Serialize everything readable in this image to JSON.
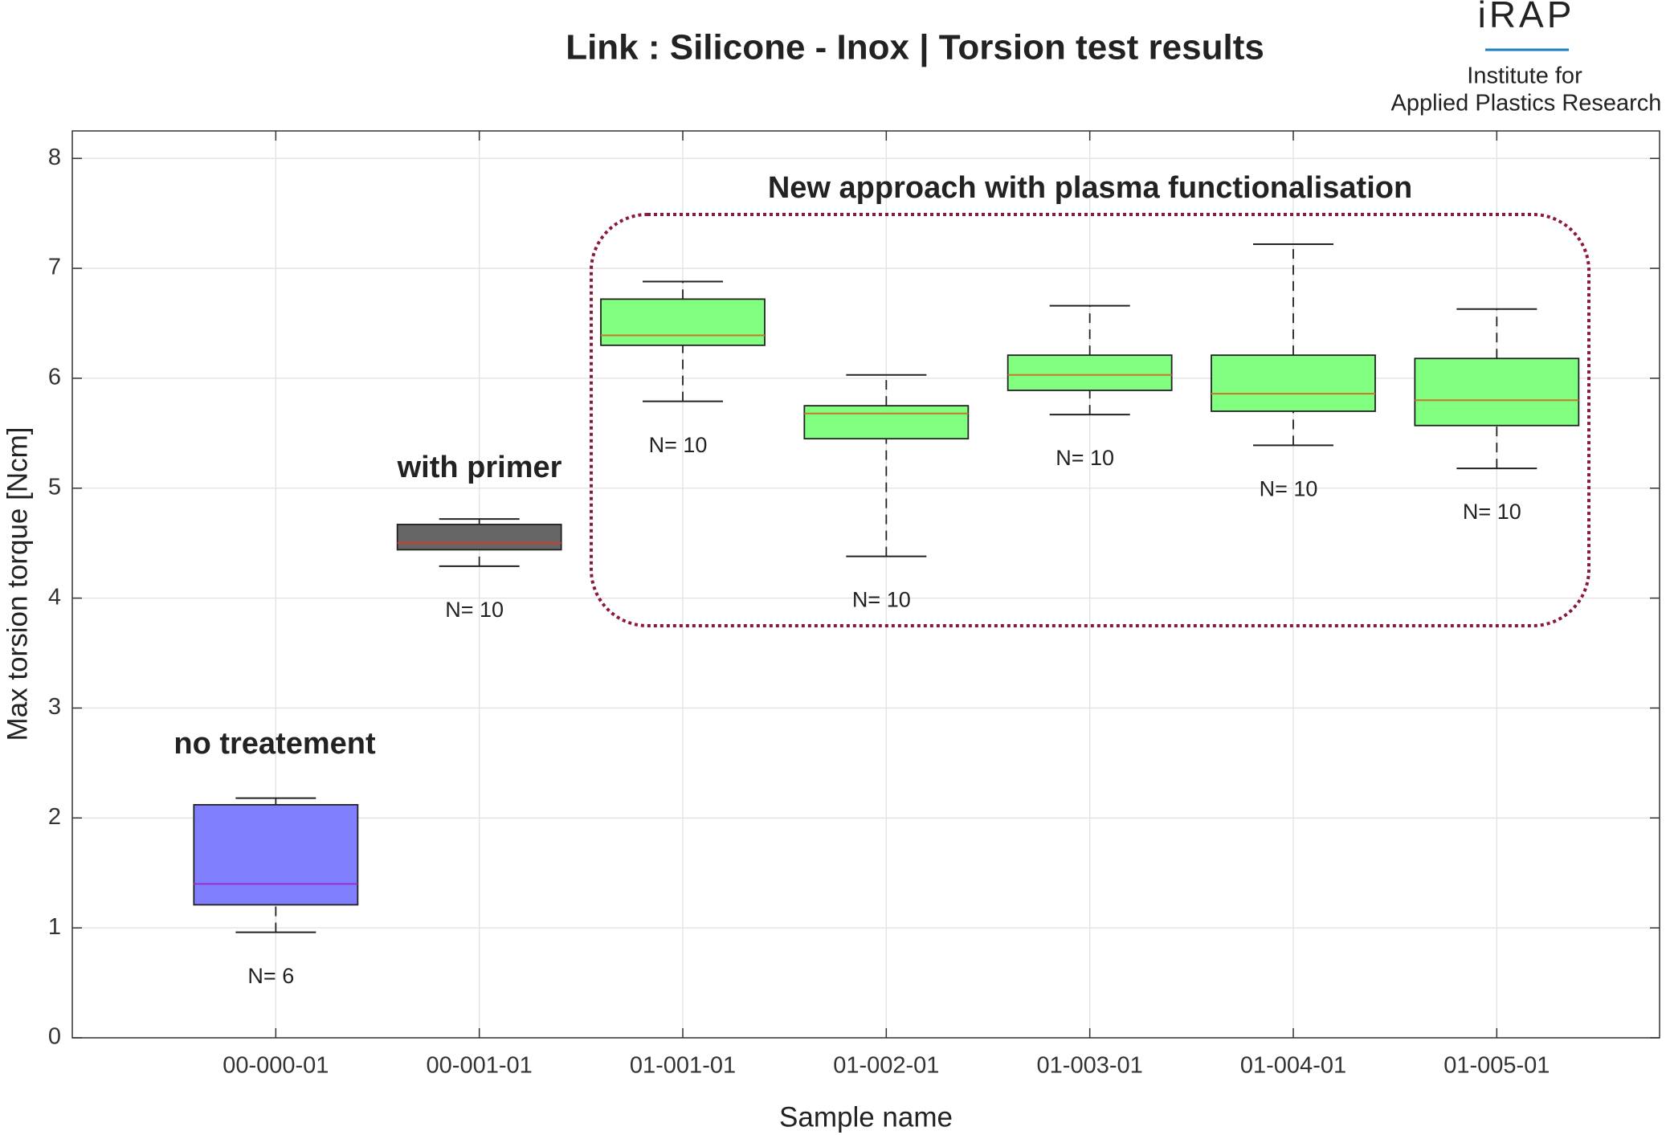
{
  "chart_data": {
    "type": "box",
    "title": "Link : Silicone - Inox | Torsion test results",
    "x_label": "Sample name",
    "y_label": "Max torsion torque [Ncm]",
    "categories": [
      "00-000-01",
      "00-001-01",
      "01-001-01",
      "01-002-01",
      "01-003-01",
      "01-004-01",
      "01-005-01"
    ],
    "boxes": [
      {
        "whisker_low": 0.96,
        "q1": 1.21,
        "median": 1.4,
        "q3": 2.12,
        "whisker_high": 2.18,
        "color": "#8080ff",
        "median_color": "#9b30c8",
        "label": "N= 6"
      },
      {
        "whisker_low": 4.29,
        "q1": 4.44,
        "median": 4.5,
        "q3": 4.67,
        "whisker_high": 4.72,
        "color": "#666666",
        "median_color": "#d23c28",
        "label": "N= 10"
      },
      {
        "whisker_low": 5.79,
        "q1": 6.3,
        "median": 6.39,
        "q3": 6.72,
        "whisker_high": 6.88,
        "color": "#80ff80",
        "median_color": "#c87828",
        "label": "N= 10"
      },
      {
        "whisker_low": 4.38,
        "q1": 5.45,
        "median": 5.68,
        "q3": 5.75,
        "whisker_high": 6.03,
        "color": "#80ff80",
        "median_color": "#c87828",
        "label": "N= 10"
      },
      {
        "whisker_low": 5.67,
        "q1": 5.89,
        "median": 6.03,
        "q3": 6.21,
        "whisker_high": 6.66,
        "color": "#80ff80",
        "median_color": "#c87828",
        "label": "N= 10"
      },
      {
        "whisker_low": 5.39,
        "q1": 5.7,
        "median": 5.86,
        "q3": 6.21,
        "whisker_high": 7.22,
        "color": "#80ff80",
        "median_color": "#c87828",
        "label": "N= 10"
      },
      {
        "whisker_low": 5.18,
        "q1": 5.57,
        "median": 5.8,
        "q3": 6.18,
        "whisker_high": 6.63,
        "color": "#80ff80",
        "median_color": "#c87828",
        "label": "N= 10"
      }
    ],
    "ylim": [
      0,
      8.25
    ],
    "yticks": [
      0,
      1,
      2,
      3,
      4,
      5,
      6,
      7,
      8
    ],
    "grid": true,
    "annotations": [
      "no treatement",
      "with primer",
      "New approach with plasma functionalisation"
    ],
    "logo": {
      "name": "iRAP",
      "line1": "Institute for",
      "line2": "Applied Plastics Research"
    }
  }
}
